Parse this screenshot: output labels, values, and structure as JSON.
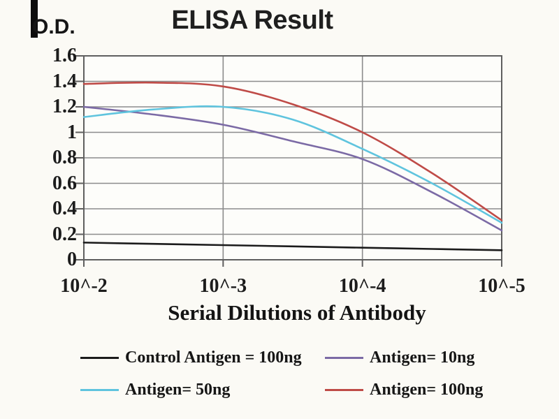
{
  "title": "ELISA Result",
  "y_axis_label": "O.D.",
  "x_axis_label": "Serial Dilutions of Antibody",
  "colors": {
    "background": "#fbfaf5",
    "plot_background": "#fdfdfa",
    "gridline": "#8c8c8c",
    "axis_border": "#5f5f5f",
    "text": "#1a1a1a"
  },
  "chart_data": {
    "type": "line",
    "title": "ELISA Result",
    "xlabel": "Serial Dilutions of Antibody",
    "ylabel": "O.D.",
    "grid": true,
    "legend_position": "below",
    "xlim": [
      0,
      3
    ],
    "ylim": [
      0,
      1.6
    ],
    "x_ticks": [
      {
        "label": "10^-2",
        "frac": 0
      },
      {
        "label": "10^-3",
        "frac": 1
      },
      {
        "label": "10^-4",
        "frac": 2
      },
      {
        "label": "10^-5",
        "frac": 3
      }
    ],
    "y_ticks": [
      {
        "label": "1.6",
        "value": 1.6
      },
      {
        "label": "1.4",
        "value": 1.4
      },
      {
        "label": "1.2",
        "value": 1.2
      },
      {
        "label": "1",
        "value": 1.0
      },
      {
        "label": "0.8",
        "value": 0.8
      },
      {
        "label": "0.6",
        "value": 0.6
      },
      {
        "label": "0.4",
        "value": 0.4
      },
      {
        "label": "0.2",
        "value": 0.2
      },
      {
        "label": "0",
        "value": 0
      }
    ],
    "x_frac": [
      0,
      0.5,
      1,
      1.5,
      2,
      2.5,
      3
    ],
    "series": [
      {
        "name": "Control Antigen = 100ng",
        "color": "#1b1b1b",
        "values": [
          0.135,
          0.125,
          0.115,
          0.105,
          0.095,
          0.085,
          0.075
        ]
      },
      {
        "name": "Antigen= 10ng",
        "color": "#7b6aa5",
        "values": [
          1.2,
          1.14,
          1.06,
          0.93,
          0.79,
          0.53,
          0.23
        ]
      },
      {
        "name": "Antigen= 50ng",
        "color": "#5fc4de",
        "values": [
          1.12,
          1.18,
          1.2,
          1.1,
          0.87,
          0.6,
          0.29
        ]
      },
      {
        "name": "Antigen= 100ng",
        "color": "#bf4b47",
        "values": [
          1.38,
          1.39,
          1.36,
          1.22,
          1.0,
          0.68,
          0.31
        ]
      }
    ],
    "draw_order": [
      1,
      2,
      3,
      0
    ]
  }
}
